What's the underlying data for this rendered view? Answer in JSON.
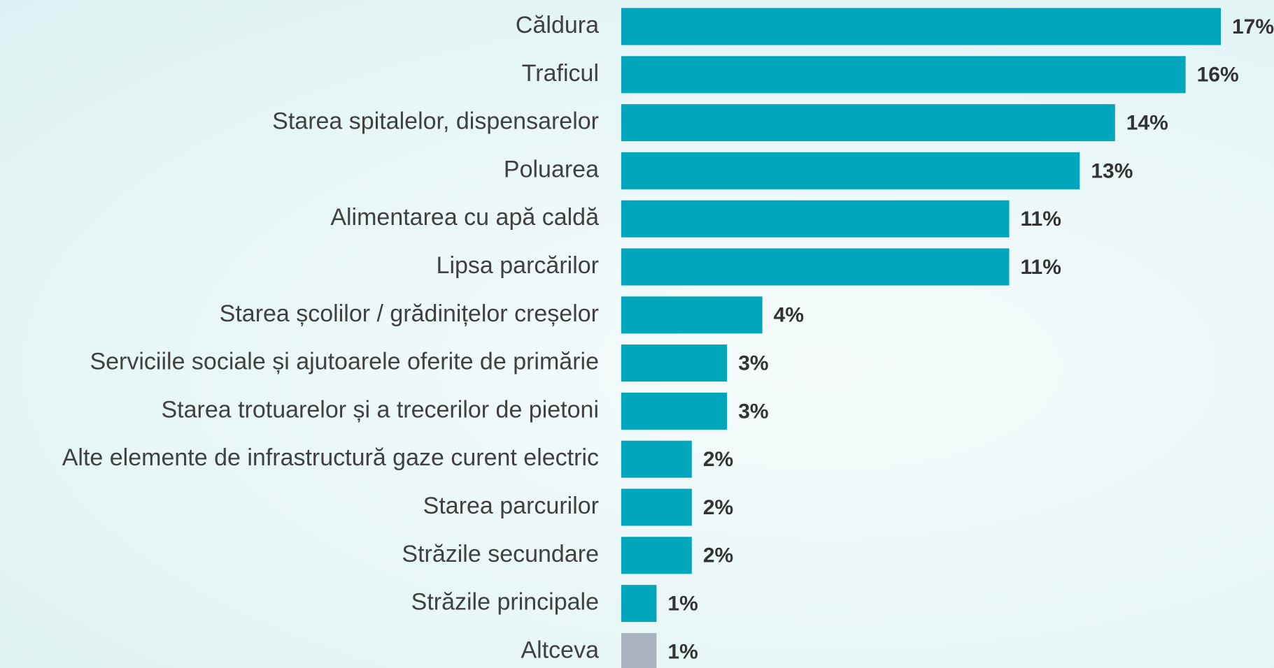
{
  "chart_data": {
    "type": "bar",
    "orientation": "horizontal",
    "categories": [
      "Căldura",
      "Traficul",
      "Starea spitalelor, dispensarelor",
      "Poluarea",
      "Alimentarea cu apă caldă",
      "Lipsa parcărilor",
      "Starea școlilor / grădinițelor creșelor",
      "Serviciile sociale și ajutoarele oferite de primărie",
      "Starea trotuarelor și a trecerilor de pietoni",
      "Alte elemente de infrastructură gaze curent electric",
      "Starea parcurilor",
      "Străzile secundare",
      "Străzile principale",
      "Altceva"
    ],
    "values": [
      17,
      16,
      14,
      13,
      11,
      11,
      4,
      3,
      3,
      2,
      2,
      2,
      1,
      1
    ],
    "value_labels": [
      "17%",
      "16%",
      "14%",
      "13%",
      "11%",
      "11%",
      "4%",
      "3%",
      "3%",
      "2%",
      "2%",
      "2%",
      "1%",
      "1%"
    ],
    "colors": [
      "#00a6bb",
      "#00a6bb",
      "#00a6bb",
      "#00a6bb",
      "#00a6bb",
      "#00a6bb",
      "#00a6bb",
      "#00a6bb",
      "#00a6bb",
      "#00a6bb",
      "#00a6bb",
      "#00a6bb",
      "#00a6bb",
      "#a9b4bf"
    ]
  }
}
